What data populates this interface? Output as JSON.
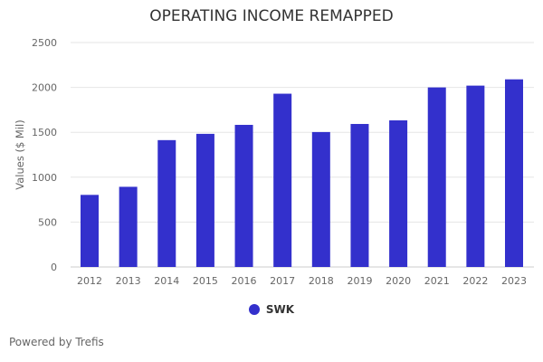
{
  "chart_data": {
    "type": "bar",
    "title": "OPERATING INCOME REMAPPED",
    "xlabel": "",
    "ylabel": "Values ($ Mil)",
    "ylim": [
      0,
      2500
    ],
    "yticks": [
      0,
      500,
      1000,
      1500,
      2000,
      2500
    ],
    "grid": true,
    "legend_position": "bottom",
    "categories": [
      "2012",
      "2013",
      "2014",
      "2015",
      "2016",
      "2017",
      "2018",
      "2019",
      "2020",
      "2021",
      "2022",
      "2023"
    ],
    "series": [
      {
        "name": "SWK",
        "color": "#3330CC",
        "values": [
          803,
          893,
          1413,
          1483,
          1583,
          1930,
          1503,
          1593,
          1633,
          2000,
          2020,
          2090
        ]
      }
    ]
  },
  "footer": {
    "powered_by": "Powered by Trefis"
  }
}
